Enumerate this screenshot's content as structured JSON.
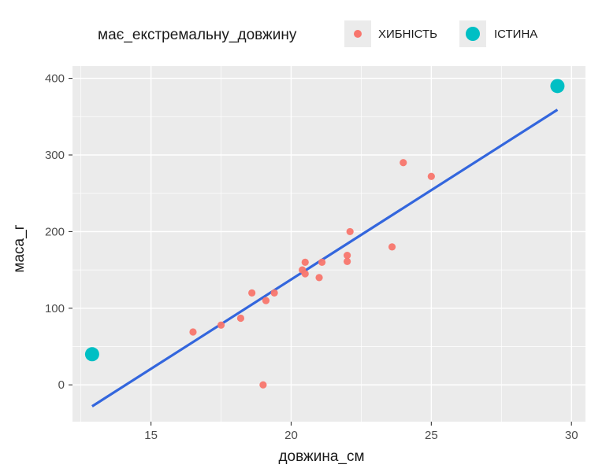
{
  "chart_data": {
    "type": "scatter",
    "xlabel": "довжина_см",
    "ylabel": "маса_г",
    "xlim": [
      12.2,
      30.5
    ],
    "ylim": [
      -48,
      416
    ],
    "x_ticks": [
      15,
      20,
      25,
      30
    ],
    "y_ticks": [
      0,
      100,
      200,
      300,
      400
    ],
    "grid": true,
    "legend": {
      "title": "має_екстремальну_довжину",
      "placement": "top",
      "entries": [
        {
          "label": "ХИБНІСТЬ",
          "color": "#F8766D"
        },
        {
          "label": "ІСТИНА",
          "color": "#00BFC4"
        }
      ]
    },
    "series": [
      {
        "name": "ХИБНІСТЬ",
        "color": "#F8766D",
        "points": [
          {
            "x": 16.5,
            "y": 69
          },
          {
            "x": 17.5,
            "y": 78
          },
          {
            "x": 18.2,
            "y": 87
          },
          {
            "x": 18.6,
            "y": 120
          },
          {
            "x": 19.0,
            "y": 0
          },
          {
            "x": 19.1,
            "y": 110
          },
          {
            "x": 19.4,
            "y": 120
          },
          {
            "x": 20.4,
            "y": 150
          },
          {
            "x": 20.5,
            "y": 145
          },
          {
            "x": 20.5,
            "y": 160
          },
          {
            "x": 21.0,
            "y": 140
          },
          {
            "x": 21.1,
            "y": 160
          },
          {
            "x": 22.0,
            "y": 169
          },
          {
            "x": 22.0,
            "y": 161
          },
          {
            "x": 22.1,
            "y": 200
          },
          {
            "x": 23.6,
            "y": 180
          },
          {
            "x": 24.0,
            "y": 290
          },
          {
            "x": 25.0,
            "y": 272
          }
        ]
      },
      {
        "name": "ІСТИНА",
        "color": "#00BFC4",
        "points": [
          {
            "x": 12.9,
            "y": 40
          },
          {
            "x": 29.5,
            "y": 390
          }
        ]
      }
    ],
    "trend_line": {
      "color": "#3366DD",
      "points": [
        {
          "x": 12.9,
          "y": -28
        },
        {
          "x": 29.5,
          "y": 359
        }
      ]
    }
  }
}
